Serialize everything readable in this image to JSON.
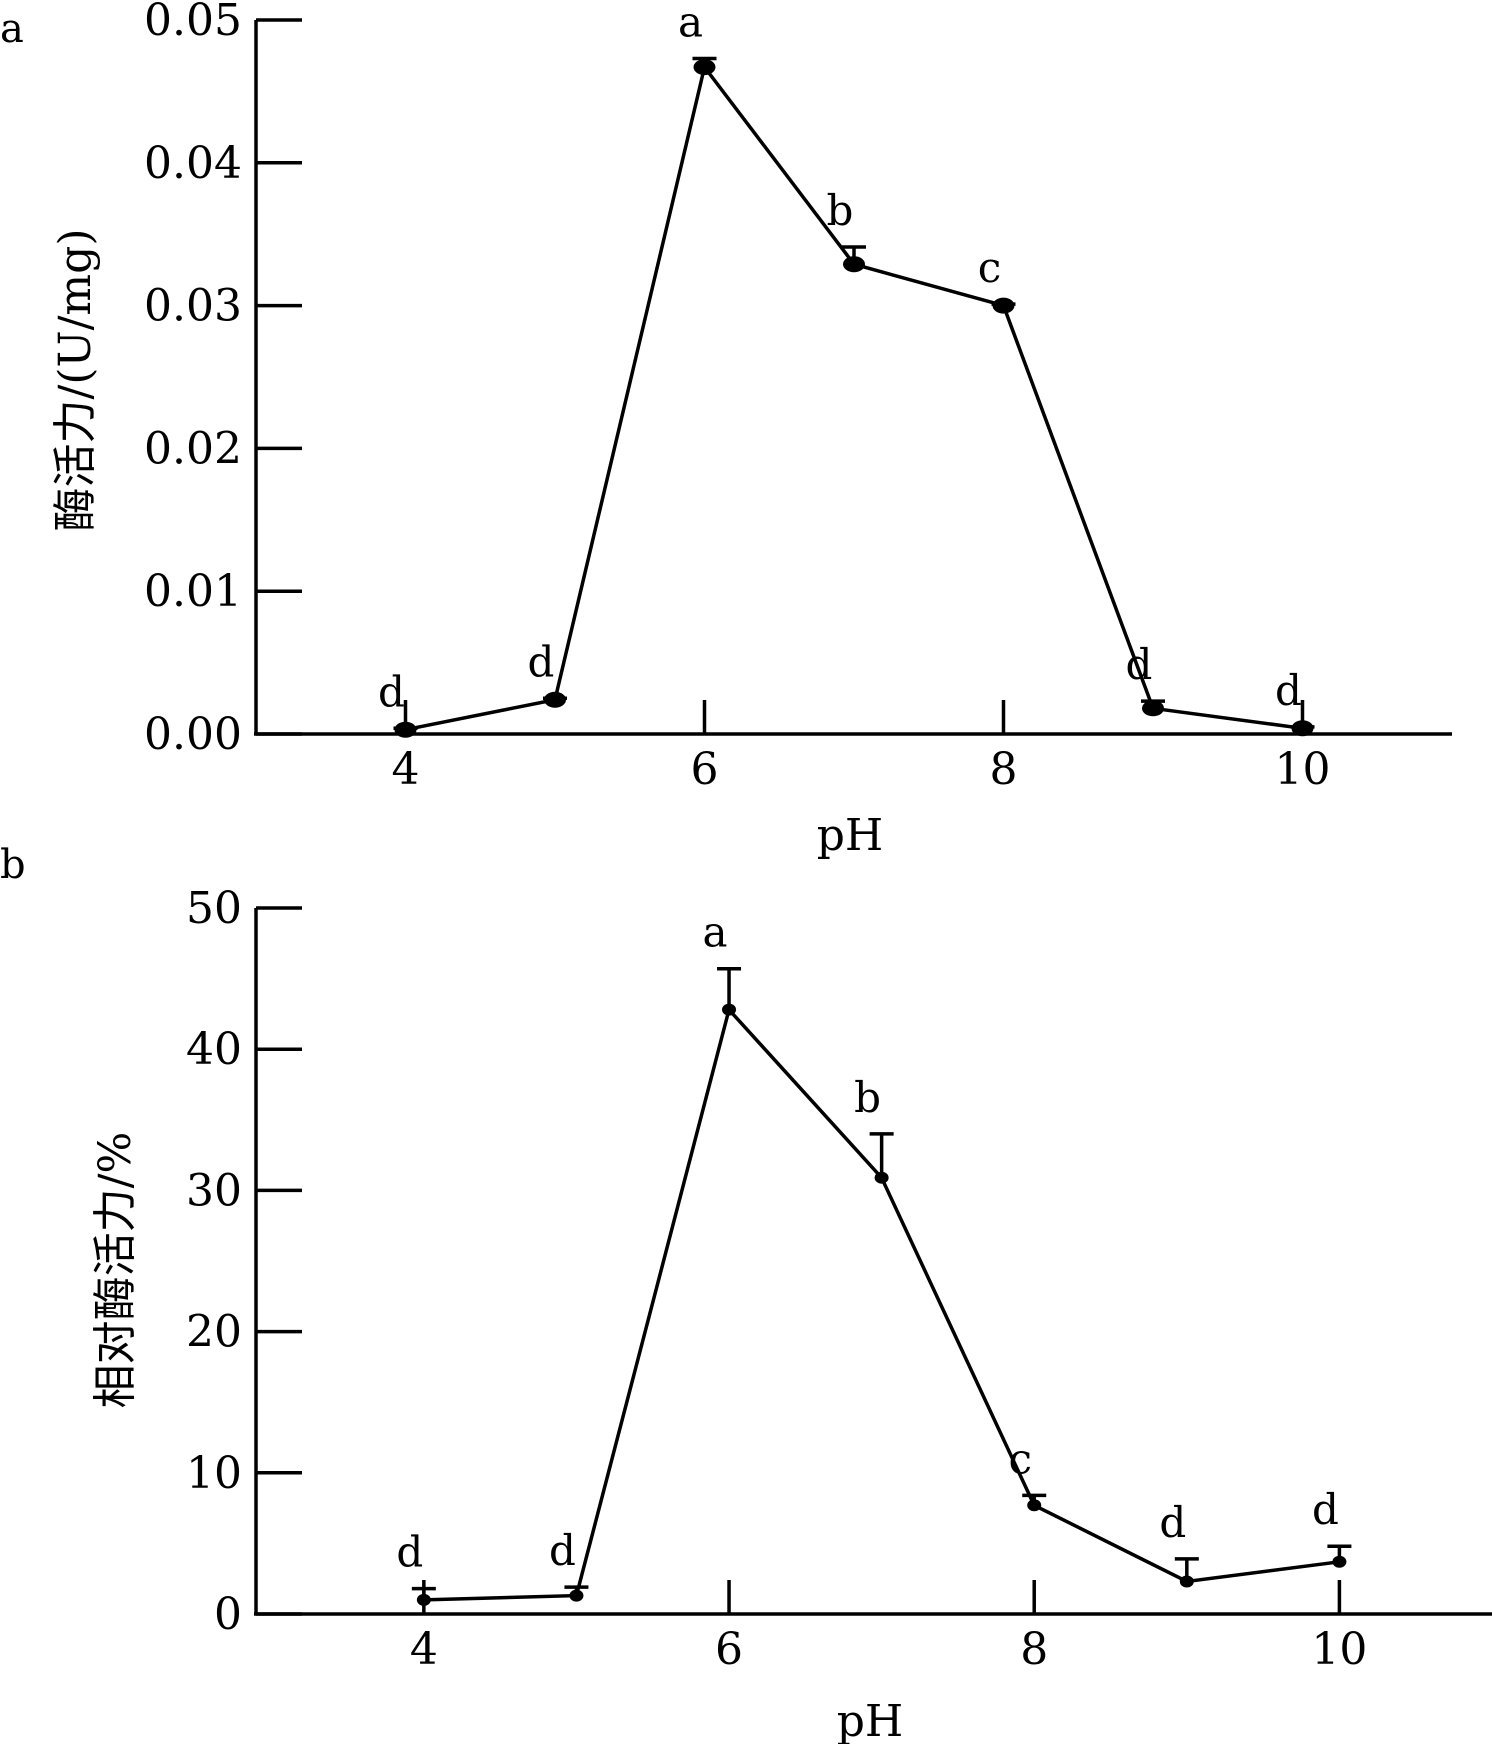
{
  "chart_data": [
    {
      "panel": "a",
      "type": "line",
      "xlabel": "pH",
      "ylabel": "酶活力/(U/mg)",
      "xlim": [
        3.0,
        11.0
      ],
      "ylim": [
        0,
        0.05
      ],
      "xticks": [
        4,
        6,
        8,
        10
      ],
      "xtick_labels": [
        "4",
        "6",
        "8",
        "10"
      ],
      "yticks": [
        0,
        0.01,
        0.02,
        0.03,
        0.04,
        0.05
      ],
      "ytick_labels": [
        "0.00",
        "0.01",
        "0.02",
        "0.03",
        "0.04",
        "0.05"
      ],
      "grid": false,
      "series": [
        {
          "x": [
            4,
            5,
            6,
            7,
            8,
            9,
            10
          ],
          "values": [
            0.0003,
            0.0024,
            0.0467,
            0.0329,
            0.03,
            0.0018,
            0.0004
          ],
          "error": [
            0.0001,
            0.0001,
            0.0006,
            0.0012,
            0.0001,
            0.0005,
            0.0001
          ],
          "labels": [
            "d",
            "d",
            "a",
            "b",
            "c",
            "d",
            "d"
          ]
        }
      ]
    },
    {
      "panel": "b",
      "type": "line",
      "xlabel": "pH",
      "ylabel": "相对酶活力/%",
      "xlim": [
        2.9,
        11.0
      ],
      "ylim": [
        0,
        50
      ],
      "xticks": [
        4,
        6,
        8,
        10
      ],
      "xtick_labels": [
        "4",
        "6",
        "8",
        "10"
      ],
      "yticks": [
        0,
        10,
        20,
        30,
        40,
        50
      ],
      "ytick_labels": [
        "0",
        "10",
        "20",
        "30",
        "40",
        "50"
      ],
      "grid": false,
      "series": [
        {
          "x": [
            4,
            5,
            6,
            7,
            8,
            9,
            10
          ],
          "values": [
            1.0,
            1.3,
            42.8,
            30.9,
            7.7,
            2.3,
            3.7
          ],
          "error": [
            0.8,
            0.6,
            2.9,
            3.1,
            0.7,
            1.6,
            1.1
          ],
          "labels": [
            "d",
            "d",
            "a",
            "b",
            "c",
            "d",
            "d"
          ]
        }
      ]
    }
  ]
}
